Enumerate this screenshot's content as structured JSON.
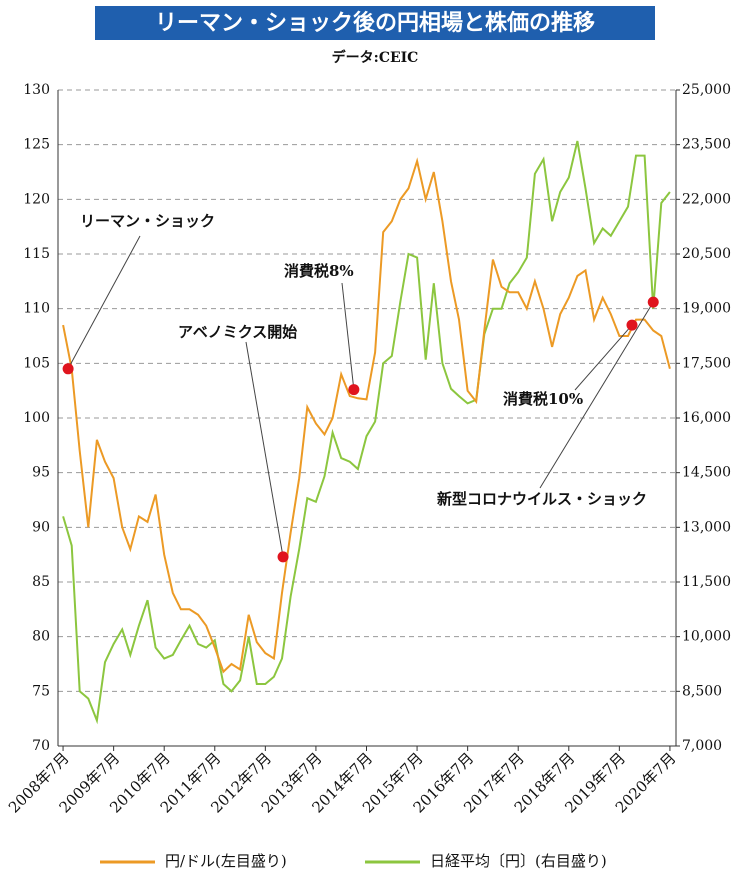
{
  "chart_data": {
    "type": "line",
    "title": "リーマン・ショック後の円相場と株価の推移",
    "subtitle": "データ:CEIC",
    "x": [
      2008.5,
      2008.67,
      2008.83,
      2009.0,
      2009.17,
      2009.33,
      2009.5,
      2009.67,
      2009.83,
      2010.0,
      2010.17,
      2010.33,
      2010.5,
      2010.67,
      2010.83,
      2011.0,
      2011.17,
      2011.33,
      2011.5,
      2011.67,
      2011.83,
      2012.0,
      2012.17,
      2012.33,
      2012.5,
      2012.67,
      2012.83,
      2013.0,
      2013.17,
      2013.33,
      2013.5,
      2013.67,
      2013.83,
      2014.0,
      2014.17,
      2014.33,
      2014.5,
      2014.67,
      2014.83,
      2015.0,
      2015.17,
      2015.33,
      2015.5,
      2015.67,
      2015.83,
      2016.0,
      2016.17,
      2016.33,
      2016.5,
      2016.67,
      2016.83,
      2017.0,
      2017.17,
      2017.33,
      2017.5,
      2017.67,
      2017.83,
      2018.0,
      2018.17,
      2018.33,
      2018.5,
      2018.67,
      2018.83,
      2019.0,
      2019.17,
      2019.33,
      2019.5,
      2019.67,
      2019.83,
      2020.0,
      2020.17,
      2020.33,
      2020.5
    ],
    "series": [
      {
        "name": "円/ドル(左目盛り)",
        "color": "#ec9a25",
        "values": [
          108.5,
          104.5,
          97,
          90,
          98,
          96,
          94.5,
          90,
          88,
          91,
          90.5,
          93,
          87.5,
          84,
          82.5,
          82.5,
          82,
          81,
          79,
          76.8,
          77.5,
          77,
          82,
          79.5,
          78.5,
          78,
          84,
          89.5,
          94.5,
          101,
          99.5,
          98.5,
          100,
          104,
          102,
          101.8,
          101.7,
          106,
          117,
          118,
          120,
          121,
          123.5,
          120,
          122.5,
          118,
          112.5,
          109,
          102.5,
          101.5,
          108,
          114.5,
          112,
          111.5,
          111.5,
          110,
          112.5,
          110,
          106.5,
          109.5,
          111,
          113,
          113.5,
          109,
          111,
          109.5,
          107.5,
          107.5,
          109,
          109,
          108,
          107.5,
          104.5
        ]
      },
      {
        "name": "日経平均〔円〕(右目盛り)",
        "color": "#8cc63f",
        "axis": "y2",
        "values": [
          13300,
          12500,
          8500,
          8300,
          7700,
          9300,
          9800,
          10200,
          9500,
          10300,
          11000,
          9700,
          9400,
          9500,
          9900,
          10300,
          9800,
          9700,
          9900,
          8700,
          8500,
          8800,
          10000,
          8700,
          8700,
          8900,
          9400,
          11100,
          12400,
          13800,
          13700,
          14400,
          15600,
          14900,
          14800,
          14600,
          15500,
          15900,
          17500,
          17700,
          19200,
          20500,
          20400,
          17600,
          19700,
          17500,
          16800,
          16600,
          16400,
          16500,
          18300,
          19000,
          19000,
          19700,
          20000,
          20400,
          22700,
          23100,
          21400,
          22200,
          22600,
          23600,
          22300,
          20800,
          21200,
          21000,
          21400,
          21800,
          23200,
          23200,
          19000,
          21900,
          22200
        ]
      }
    ],
    "annotations": [
      {
        "text": "リーマン・ショック",
        "x": 2008.6,
        "y": 104.5
      },
      {
        "text": "アベノミクス開始",
        "x": 2012.85,
        "y": 87.3
      },
      {
        "text": "消費税8%",
        "x": 2014.25,
        "y": 102.6
      },
      {
        "text": "消費税10%",
        "x": 2019.75,
        "y": 108.5
      },
      {
        "text": "新型コロナウイルス・ショック",
        "x": 2020.17,
        "y": 110.6
      }
    ],
    "xlim": [
      2008.4,
      2020.62
    ],
    "xticks": [
      {
        "value": 2008.5,
        "label": "2008年7月"
      },
      {
        "value": 2009.5,
        "label": "2009年7月"
      },
      {
        "value": 2010.5,
        "label": "2010年7月"
      },
      {
        "value": 2011.5,
        "label": "2011年7月"
      },
      {
        "value": 2012.5,
        "label": "2012年7月"
      },
      {
        "value": 2013.5,
        "label": "2013年7月"
      },
      {
        "value": 2014.5,
        "label": "2014年7月"
      },
      {
        "value": 2015.5,
        "label": "2015年7月"
      },
      {
        "value": 2016.5,
        "label": "2016年7月"
      },
      {
        "value": 2017.5,
        "label": "2017年7月"
      },
      {
        "value": 2018.5,
        "label": "2018年7月"
      },
      {
        "value": 2019.5,
        "label": "2019年7月"
      },
      {
        "value": 2020.5,
        "label": "2020年7月"
      }
    ],
    "ylim": [
      70,
      130
    ],
    "yticks": [
      70,
      75,
      80,
      85,
      90,
      95,
      100,
      105,
      110,
      115,
      120,
      125,
      130
    ],
    "y2lim": [
      7000,
      25000
    ],
    "y2ticks": [
      {
        "value": 7000,
        "label": "7,000"
      },
      {
        "value": 8500,
        "label": "8,500"
      },
      {
        "value": 10000,
        "label": "10,000"
      },
      {
        "value": 11500,
        "label": "11,500"
      },
      {
        "value": 13000,
        "label": "13,000"
      },
      {
        "value": 14500,
        "label": "14,500"
      },
      {
        "value": 16000,
        "label": "16,000"
      },
      {
        "value": 17500,
        "label": "17,500"
      },
      {
        "value": 19000,
        "label": "19,000"
      },
      {
        "value": 20500,
        "label": "20,500"
      },
      {
        "value": 22000,
        "label": "22,000"
      },
      {
        "value": 23500,
        "label": "23,500"
      },
      {
        "value": 25000,
        "label": "25,000"
      }
    ],
    "grid": true,
    "annotation_color": "#e0141e",
    "legend": "bottom"
  }
}
